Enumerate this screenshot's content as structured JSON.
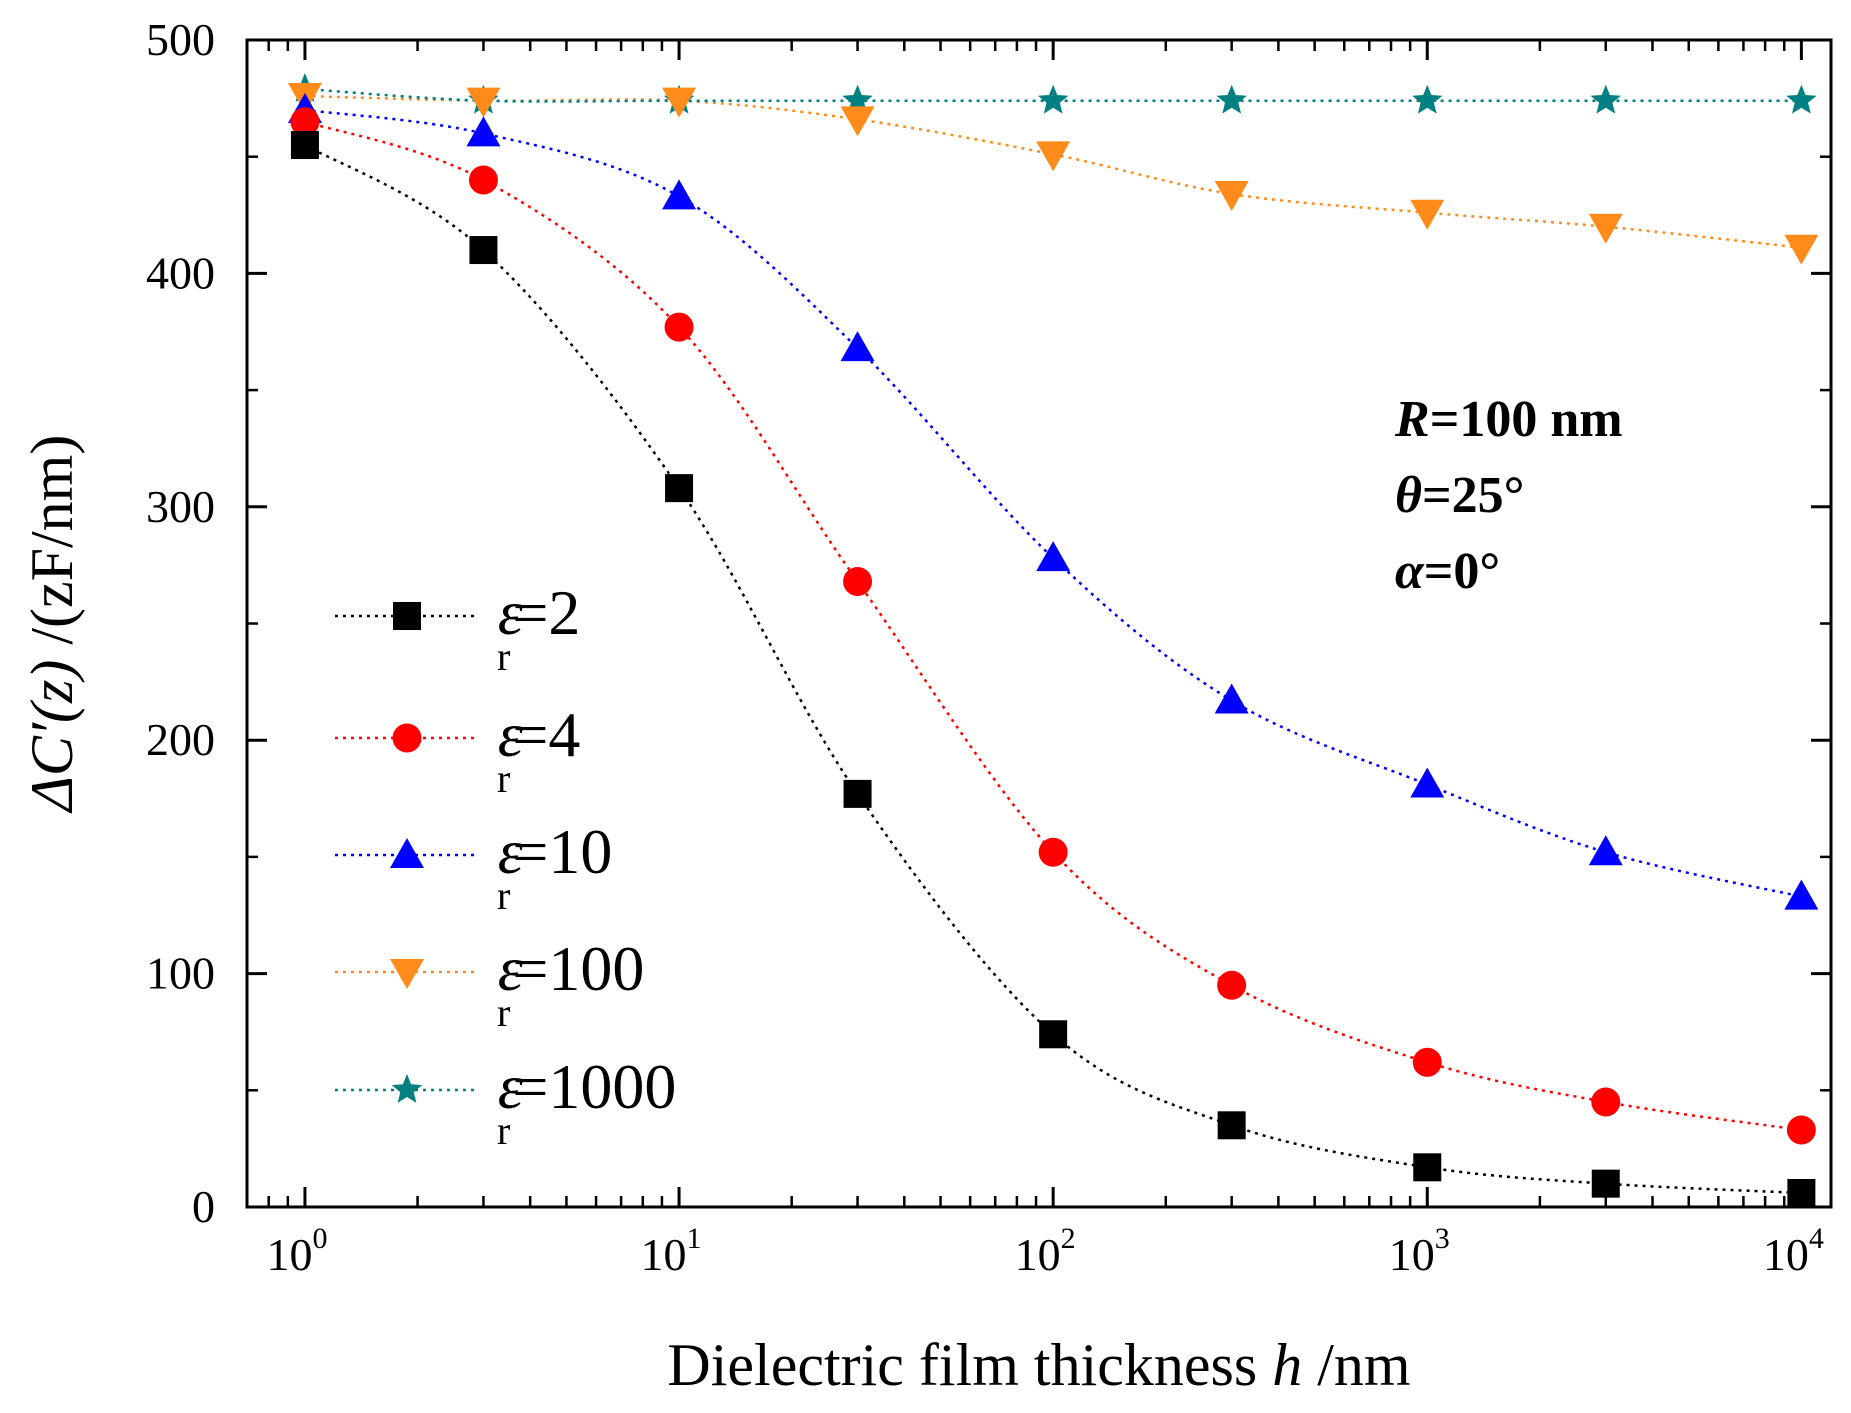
{
  "chart_data": {
    "type": "line",
    "x_scale": "log",
    "x": [
      1,
      3,
      10,
      30,
      100,
      300,
      1000,
      3000,
      10000
    ],
    "xlim": [
      0.7,
      12000
    ],
    "ylim": [
      0,
      500
    ],
    "yticks": [
      0,
      100,
      200,
      300,
      400,
      500
    ],
    "xticks": [
      {
        "value": 1,
        "base": "10",
        "exp": "0"
      },
      {
        "value": 10,
        "base": "10",
        "exp": "1"
      },
      {
        "value": 100,
        "base": "10",
        "exp": "2"
      },
      {
        "value": 1000,
        "base": "10",
        "exp": "3"
      },
      {
        "value": 10000,
        "base": "10",
        "exp": "4"
      }
    ],
    "xlabel": {
      "main": "Dielectric film thickness ",
      "var": "h",
      "unit": " /nm"
    },
    "ylabel": {
      "delta": "ΔC′(z)",
      "unit": " /(zF/nm)"
    },
    "grid": false,
    "legend_position": "left-middle",
    "series": [
      {
        "name": "ε",
        "sub": "r",
        "eq": "=2",
        "color": "#000000",
        "marker": "square",
        "values": [
          455,
          410,
          308,
          177,
          74,
          35,
          17,
          10,
          6
        ]
      },
      {
        "name": "ε",
        "sub": "r",
        "eq": "=4",
        "color": "#ff0000",
        "marker": "circle",
        "values": [
          465,
          440,
          377,
          268,
          152,
          95,
          62,
          45,
          33
        ]
      },
      {
        "name": "ε",
        "sub": "r",
        "eq": "=10",
        "color": "#0000ff",
        "marker": "triangle-up",
        "values": [
          470,
          460,
          433,
          368,
          278,
          217,
          181,
          152,
          133
        ]
      },
      {
        "name": "ε",
        "sub": "r",
        "eq": "=100",
        "color": "#ff8c1a",
        "marker": "triangle-down",
        "values": [
          476,
          474,
          474,
          466,
          451,
          434,
          426,
          420,
          411
        ]
      },
      {
        "name": "ε",
        "sub": "r",
        "eq": "=1000",
        "color": "#008080",
        "marker": "star",
        "values": [
          479,
          474,
          474,
          474,
          474,
          474,
          474,
          474,
          474
        ]
      }
    ],
    "annotations": [
      {
        "var": "R",
        "text": "=100 nm"
      },
      {
        "var": "θ",
        "text": "=25°"
      },
      {
        "var": "α",
        "text": "=0°"
      }
    ]
  }
}
